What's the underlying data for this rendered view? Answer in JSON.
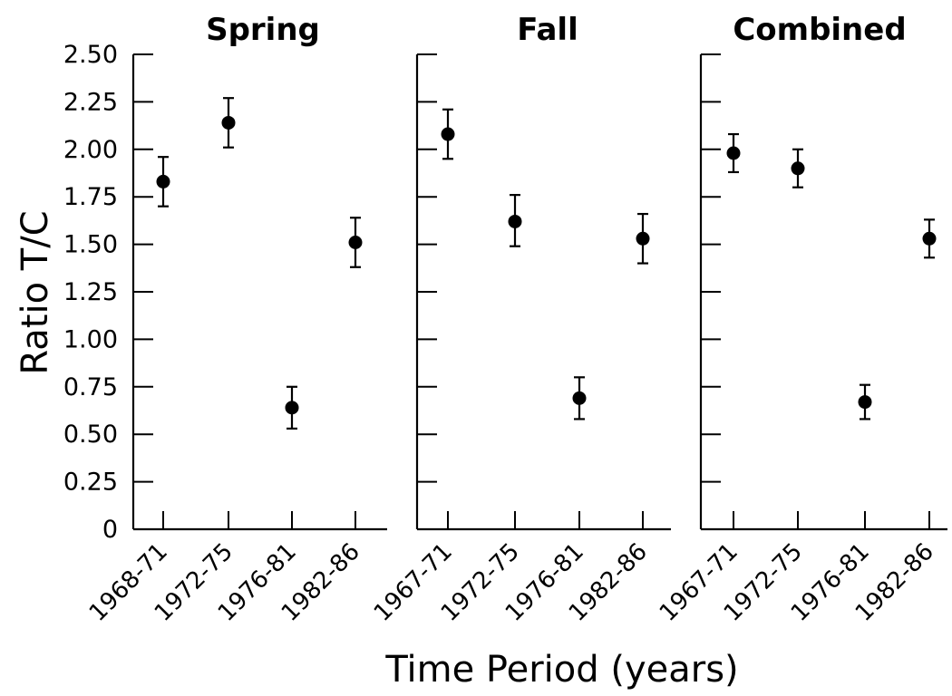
{
  "chart_data": {
    "type": "scatter",
    "ylabel": "Ratio T/C",
    "xlabel": "Time Period (years)",
    "ylim": [
      0,
      2.5
    ],
    "yticks": [
      "0",
      "0.25",
      "0.50",
      "0.75",
      "1.00",
      "1.25",
      "1.50",
      "1.75",
      "2.00",
      "2.25",
      "2.50"
    ],
    "error_bars": true,
    "grid": false,
    "panels": [
      {
        "title": "Spring",
        "categories": [
          "1968-71",
          "1972-75",
          "1976-81",
          "1982-86"
        ],
        "values": [
          1.83,
          2.14,
          0.64,
          1.51
        ],
        "err_low": [
          1.7,
          2.01,
          0.53,
          1.38
        ],
        "err_high": [
          1.96,
          2.27,
          0.75,
          1.64
        ]
      },
      {
        "title": "Fall",
        "categories": [
          "1967-71",
          "1972-75",
          "1976-81",
          "1982-86"
        ],
        "values": [
          2.08,
          1.62,
          0.69,
          1.53
        ],
        "err_low": [
          1.95,
          1.49,
          0.58,
          1.4
        ],
        "err_high": [
          2.21,
          1.76,
          0.8,
          1.66
        ]
      },
      {
        "title": "Combined",
        "categories": [
          "1967-71",
          "1972-75",
          "1976-81",
          "1982-86"
        ],
        "values": [
          1.98,
          1.9,
          0.67,
          1.53
        ],
        "err_low": [
          1.88,
          1.8,
          0.58,
          1.43
        ],
        "err_high": [
          2.08,
          2.0,
          0.76,
          1.63
        ]
      }
    ]
  }
}
